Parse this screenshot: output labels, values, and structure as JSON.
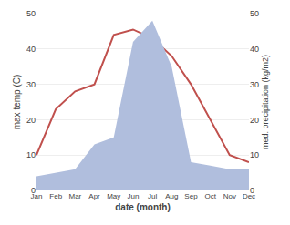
{
  "chart_data": {
    "type": "line",
    "categories": [
      "Jan",
      "Feb",
      "Mar",
      "Apr",
      "May",
      "Jun",
      "Jul",
      "Aug",
      "Sep",
      "Oct",
      "Nov",
      "Dec"
    ],
    "series": [
      {
        "type": "area",
        "axis": "y2",
        "color": "#b0bedd",
        "values": [
          4,
          5,
          6,
          13,
          15,
          42,
          48,
          35,
          8,
          7,
          6,
          6
        ]
      },
      {
        "type": "line",
        "color": "#c0504d",
        "values": [
          10,
          23,
          28,
          30,
          44,
          45.5,
          43,
          38,
          30,
          20,
          10,
          8
        ]
      }
    ],
    "xlabel": "date (month)",
    "ylabel": "max temp (C)",
    "y2label": "med. precipitation (kg/m2)",
    "ylim": [
      0,
      50
    ],
    "yticks": [
      0,
      10,
      20,
      30,
      40,
      50
    ],
    "y2lim": [
      0,
      50
    ],
    "y2ticks": [
      0,
      10,
      20,
      30,
      40,
      50
    ],
    "grid": true
  }
}
